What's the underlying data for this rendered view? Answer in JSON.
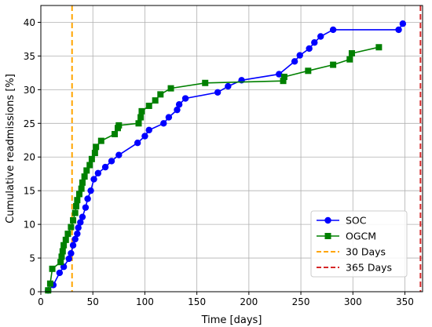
{
  "chart_data": {
    "type": "line",
    "xlabel": "Time [days]",
    "ylabel": "Cumulative readmissions [%]",
    "xlim": [
      0,
      367
    ],
    "ylim": [
      0,
      42.5
    ],
    "xticks": [
      0,
      50,
      100,
      150,
      200,
      250,
      300,
      350
    ],
    "yticks": [
      0,
      5,
      10,
      15,
      20,
      25,
      30,
      35,
      40
    ],
    "grid": true,
    "legend_position": "bottom-right",
    "series": [
      {
        "name": "SOC",
        "color": "#0000ff",
        "marker": "circle",
        "x": [
          7,
          12,
          18,
          22,
          27,
          29,
          31,
          33,
          35,
          36,
          38,
          40,
          43,
          45,
          48,
          51,
          55,
          62,
          68,
          75,
          93,
          100,
          104,
          118,
          123,
          131,
          133,
          139,
          170,
          180,
          193,
          229,
          244,
          249,
          258,
          263,
          269,
          281,
          344,
          348
        ],
        "y": [
          0.2,
          1.0,
          2.8,
          3.7,
          4.9,
          5.7,
          6.9,
          7.8,
          8.6,
          9.5,
          10.3,
          11.1,
          12.5,
          13.8,
          15.0,
          16.7,
          17.6,
          18.5,
          19.4,
          20.3,
          22.1,
          23.1,
          24.0,
          25.0,
          25.9,
          27.0,
          27.8,
          28.7,
          29.6,
          30.5,
          31.4,
          32.3,
          34.2,
          35.1,
          36.1,
          37.0,
          37.9,
          38.9,
          38.9,
          39.8
        ]
      },
      {
        "name": "OGCM",
        "color": "#008000",
        "marker": "square",
        "x": [
          7,
          9,
          11,
          19,
          20,
          21,
          22,
          24,
          26,
          29,
          31,
          33,
          34,
          35,
          37,
          39,
          40,
          42,
          44,
          47,
          49,
          52,
          53,
          58,
          71,
          74,
          75,
          94,
          96,
          97,
          104,
          110,
          115,
          125,
          158,
          233,
          234,
          257,
          281,
          297,
          299,
          325
        ],
        "y": [
          0.2,
          1.2,
          3.4,
          4.4,
          5.2,
          6.0,
          6.9,
          7.7,
          8.6,
          9.6,
          10.6,
          11.7,
          12.7,
          13.6,
          14.5,
          15.3,
          16.2,
          17.1,
          18.0,
          18.8,
          19.7,
          20.6,
          21.5,
          22.4,
          23.4,
          24.3,
          24.7,
          25.0,
          25.9,
          26.8,
          27.6,
          28.4,
          29.3,
          30.2,
          31.0,
          31.3,
          31.9,
          32.8,
          33.7,
          34.5,
          35.4,
          36.3
        ]
      }
    ],
    "reference_lines": [
      {
        "name": "30 Days",
        "x": 30,
        "color": "#ffa500",
        "style": "dashed"
      },
      {
        "name": "365 Days",
        "x": 365,
        "color": "#d62728",
        "style": "dashed"
      }
    ]
  }
}
